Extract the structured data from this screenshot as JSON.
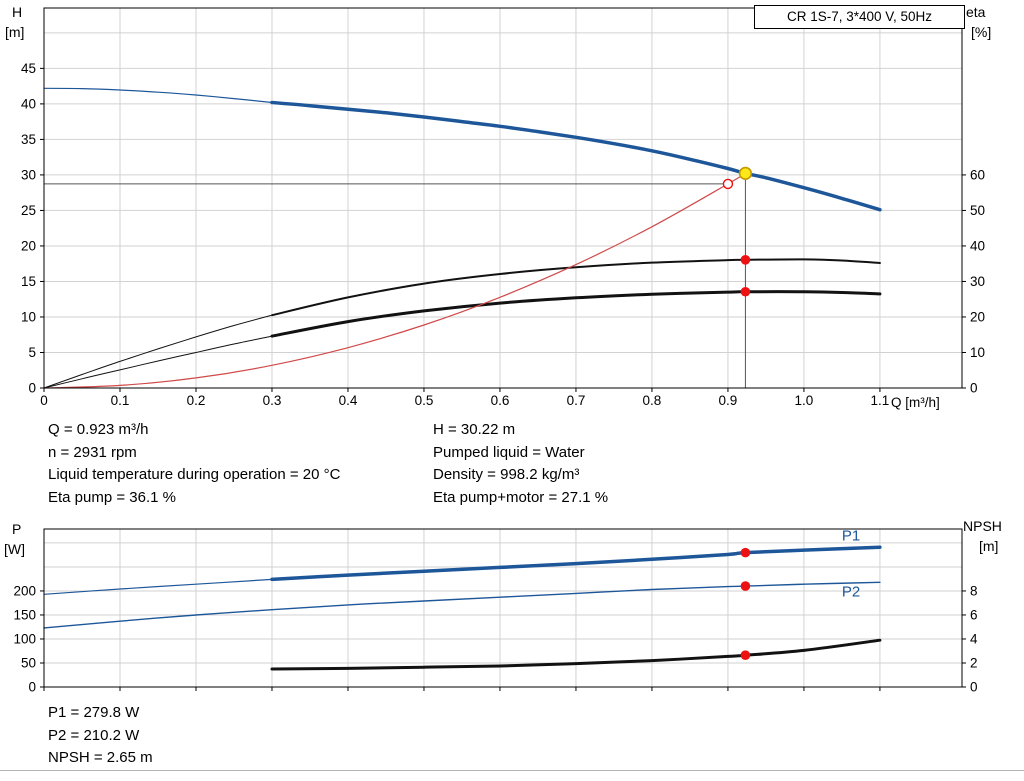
{
  "panel": {
    "title_box": "CR 1S-7, 3*400 V, 50Hz"
  },
  "colors": {
    "curve_blue": "#1e5799",
    "curve_black": "#121212",
    "system_red": "#d04a4a",
    "marker_red": "#ee1111",
    "marker_yellow": "#ffe817",
    "marker_yellow_ring": "#c09b00",
    "guide_gray": "#555555",
    "grid": "#d2d2d2",
    "text": "#000000"
  },
  "annotations": {
    "mid_left": [
      "Q = 0.923 m³/h",
      "n = 2931 rpm",
      "Liquid temperature during operation = 20 °C",
      "Eta pump = 36.1 %"
    ],
    "mid_right": [
      "H = 30.22 m",
      "Pumped liquid = Water",
      "Density = 998.2 kg/m³",
      "Eta pump+motor = 27.1 %"
    ],
    "bottom": [
      "P1 = 279.8 W",
      "P2 = 210.2 W",
      "NPSH = 2.65 m"
    ]
  },
  "chart_data": [
    {
      "id": "qh-eta",
      "type": "line",
      "axes": {
        "x": {
          "label": "Q [m³/h]",
          "min": 0,
          "max": 1.208,
          "ticks": [
            [
              0,
              "0"
            ],
            [
              0.1,
              "0.1"
            ],
            [
              0.2,
              "0.2"
            ],
            [
              0.3,
              "0.3"
            ],
            [
              0.4,
              "0.4"
            ],
            [
              0.5,
              "0.5"
            ],
            [
              0.6,
              "0.6"
            ],
            [
              0.7,
              "0.7"
            ],
            [
              0.8,
              "0.8"
            ],
            [
              0.9,
              "0.9"
            ],
            [
              1.0,
              "1.0"
            ],
            [
              1.1,
              "1.1"
            ]
          ],
          "grid": [
            0.1,
            0.2,
            0.3,
            0.4,
            0.5,
            0.6,
            0.7,
            0.8,
            0.9,
            1.0,
            1.1
          ],
          "show_labels": true
        },
        "left": {
          "label": "H",
          "unit": "[m]",
          "min": 0,
          "max": 53.5,
          "ticks": [
            [
              0,
              "0"
            ],
            [
              5,
              "5"
            ],
            [
              10,
              "10"
            ],
            [
              15,
              "15"
            ],
            [
              20,
              "20"
            ],
            [
              25,
              "25"
            ],
            [
              30,
              "30"
            ],
            [
              35,
              "35"
            ],
            [
              40,
              "40"
            ],
            [
              45,
              "45"
            ]
          ],
          "grid": [
            5,
            10,
            15,
            20,
            25,
            30,
            35,
            40,
            45,
            50
          ]
        },
        "right": {
          "label": "eta",
          "unit": "[%]",
          "min": 0,
          "max": 107,
          "ticks": [
            [
              0,
              "0"
            ],
            [
              10,
              "10"
            ],
            [
              20,
              "20"
            ],
            [
              30,
              "30"
            ],
            [
              40,
              "40"
            ],
            [
              50,
              "50"
            ],
            [
              60,
              "60"
            ]
          ]
        }
      },
      "series": [
        {
          "name": "head-curve-low",
          "axis": "left",
          "color": "curve_blue",
          "width": 1.2,
          "points": [
            [
              0,
              42.2
            ],
            [
              0.05,
              42.15
            ],
            [
              0.1,
              41.95
            ],
            [
              0.15,
              41.65
            ],
            [
              0.2,
              41.25
            ],
            [
              0.25,
              40.75
            ],
            [
              0.3,
              40.2
            ]
          ]
        },
        {
          "name": "head-curve",
          "axis": "left",
          "color": "curve_blue",
          "width": 3.5,
          "points": [
            [
              0.3,
              40.2
            ],
            [
              0.35,
              39.75
            ],
            [
              0.4,
              39.25
            ],
            [
              0.45,
              38.75
            ],
            [
              0.5,
              38.15
            ],
            [
              0.55,
              37.5
            ],
            [
              0.6,
              36.85
            ],
            [
              0.65,
              36.1
            ],
            [
              0.7,
              35.3
            ],
            [
              0.75,
              34.4
            ],
            [
              0.8,
              33.4
            ],
            [
              0.85,
              32.2
            ],
            [
              0.9,
              30.9
            ],
            [
              0.923,
              30.22
            ],
            [
              0.95,
              29.6
            ],
            [
              1.0,
              28.2
            ],
            [
              1.05,
              26.7
            ],
            [
              1.1,
              25.1
            ]
          ]
        },
        {
          "name": "eta-pump-low",
          "axis": "right",
          "color": "curve_black",
          "width": 1,
          "points": [
            [
              0,
              0
            ],
            [
              0.05,
              3.8
            ],
            [
              0.1,
              7.5
            ],
            [
              0.15,
              11.0
            ],
            [
              0.2,
              14.4
            ],
            [
              0.25,
              17.6
            ],
            [
              0.3,
              20.5
            ]
          ]
        },
        {
          "name": "eta-pump",
          "axis": "right",
          "color": "curve_black",
          "width": 2,
          "points": [
            [
              0.3,
              20.5
            ],
            [
              0.4,
              25.5
            ],
            [
              0.5,
              29.4
            ],
            [
              0.6,
              32.1
            ],
            [
              0.7,
              34.0
            ],
            [
              0.8,
              35.3
            ],
            [
              0.9,
              36.0
            ],
            [
              0.923,
              36.1
            ],
            [
              1.0,
              36.2
            ],
            [
              1.05,
              35.9
            ],
            [
              1.1,
              35.2
            ]
          ]
        },
        {
          "name": "eta-pump-motor-low",
          "axis": "right",
          "color": "curve_black",
          "width": 1,
          "points": [
            [
              0,
              0
            ],
            [
              0.05,
              2.6
            ],
            [
              0.1,
              5.1
            ],
            [
              0.15,
              7.6
            ],
            [
              0.2,
              10.0
            ],
            [
              0.25,
              12.4
            ],
            [
              0.3,
              14.6
            ]
          ]
        },
        {
          "name": "eta-pump-motor",
          "axis": "right",
          "color": "curve_black",
          "width": 3,
          "points": [
            [
              0.3,
              14.6
            ],
            [
              0.4,
              18.7
            ],
            [
              0.5,
              21.7
            ],
            [
              0.6,
              23.9
            ],
            [
              0.7,
              25.4
            ],
            [
              0.8,
              26.4
            ],
            [
              0.9,
              27.0
            ],
            [
              0.923,
              27.1
            ],
            [
              1.0,
              27.1
            ],
            [
              1.05,
              26.9
            ],
            [
              1.1,
              26.5
            ]
          ]
        },
        {
          "name": "system-curve",
          "axis": "left",
          "color": "system_red",
          "width": 1.2,
          "points": [
            [
              0,
              0
            ],
            [
              0.1,
              0.36
            ],
            [
              0.2,
              1.42
            ],
            [
              0.3,
              3.19
            ],
            [
              0.4,
              5.68
            ],
            [
              0.5,
              8.87
            ],
            [
              0.6,
              12.77
            ],
            [
              0.7,
              17.38
            ],
            [
              0.8,
              22.7
            ],
            [
              0.9,
              28.73
            ],
            [
              0.923,
              30.22
            ]
          ]
        }
      ],
      "guides": [
        {
          "type": "v",
          "x": 0.923,
          "from": 0,
          "to": 30.22,
          "axis": "left"
        },
        {
          "type": "h",
          "value": 28.73,
          "from": 0,
          "to": 0.9,
          "axis": "left"
        }
      ],
      "markers": [
        {
          "name": "eta-pump-point",
          "x": 0.923,
          "value": 36.1,
          "axis": "right",
          "r": 4.8,
          "fill": "marker_red"
        },
        {
          "name": "eta-pump-motor-point",
          "x": 0.923,
          "value": 27.1,
          "axis": "right",
          "r": 4.8,
          "fill": "marker_red"
        },
        {
          "name": "requested-duty-point",
          "x": 0.9,
          "value": 28.73,
          "axis": "left",
          "r": 4.5,
          "fill": "#ffffff",
          "stroke": "marker_red",
          "sw": 1.4,
          "click": true
        },
        {
          "name": "operating-point",
          "x": 0.923,
          "value": 30.22,
          "axis": "left",
          "r": 5.8,
          "fill": "marker_yellow",
          "stroke": "marker_yellow_ring",
          "sw": 1.6,
          "click": true
        }
      ],
      "labels": []
    },
    {
      "id": "power-npsh",
      "type": "line",
      "axes": {
        "x": {
          "label": "",
          "min": 0,
          "max": 1.208,
          "ticks": [
            [
              0,
              "0"
            ],
            [
              0.1,
              "0.1"
            ],
            [
              0.2,
              "0.2"
            ],
            [
              0.3,
              "0.3"
            ],
            [
              0.4,
              "0.4"
            ],
            [
              0.5,
              "0.5"
            ],
            [
              0.6,
              "0.6"
            ],
            [
              0.7,
              "0.7"
            ],
            [
              0.8,
              "0.8"
            ],
            [
              0.9,
              "0.9"
            ],
            [
              1.0,
              "1.0"
            ],
            [
              1.1,
              "1.1"
            ]
          ],
          "grid": [
            0.1,
            0.2,
            0.3,
            0.4,
            0.5,
            0.6,
            0.7,
            0.8,
            0.9,
            1.0,
            1.1
          ],
          "show_labels": false
        },
        "left": {
          "label": "P",
          "unit": "[W]",
          "min": 0,
          "max": 329,
          "ticks": [
            [
              0,
              "0"
            ],
            [
              50,
              "50"
            ],
            [
              100,
              "100"
            ],
            [
              150,
              "150"
            ],
            [
              200,
              "200"
            ]
          ],
          "grid": [
            50,
            100,
            150,
            200,
            250,
            300
          ]
        },
        "right": {
          "label": "NPSH",
          "unit": "[m]",
          "min": 0,
          "max": 13.16,
          "ticks": [
            [
              0,
              "0"
            ],
            [
              2,
              "2"
            ],
            [
              4,
              "4"
            ],
            [
              6,
              "6"
            ],
            [
              8,
              "8"
            ]
          ]
        }
      },
      "series": [
        {
          "name": "p1-curve-low",
          "axis": "left",
          "color": "curve_blue",
          "width": 1.2,
          "points": [
            [
              0,
              193
            ],
            [
              0.1,
              204
            ],
            [
              0.2,
              214
            ],
            [
              0.3,
              224
            ]
          ]
        },
        {
          "name": "p1-curve",
          "axis": "left",
          "color": "curve_blue",
          "width": 3.5,
          "points": [
            [
              0.3,
              224
            ],
            [
              0.4,
              233
            ],
            [
              0.5,
              241
            ],
            [
              0.6,
              249
            ],
            [
              0.7,
              257
            ],
            [
              0.8,
              266
            ],
            [
              0.9,
              276
            ],
            [
              0.923,
              279.8
            ],
            [
              1.0,
              285
            ],
            [
              1.1,
              291
            ]
          ]
        },
        {
          "name": "p2-curve",
          "axis": "left",
          "color": "curve_blue",
          "width": 1.4,
          "points": [
            [
              0,
              123
            ],
            [
              0.1,
              137
            ],
            [
              0.2,
              150
            ],
            [
              0.3,
              161
            ],
            [
              0.4,
              171
            ],
            [
              0.5,
              179
            ],
            [
              0.6,
              187
            ],
            [
              0.7,
              195
            ],
            [
              0.8,
              203
            ],
            [
              0.9,
              209
            ],
            [
              0.923,
              210.2
            ],
            [
              1.0,
              214
            ],
            [
              1.1,
              218
            ]
          ]
        },
        {
          "name": "npsh-curve",
          "axis": "right",
          "color": "curve_black",
          "width": 3,
          "points": [
            [
              0.3,
              1.5
            ],
            [
              0.4,
              1.55
            ],
            [
              0.5,
              1.65
            ],
            [
              0.6,
              1.75
            ],
            [
              0.7,
              1.95
            ],
            [
              0.8,
              2.2
            ],
            [
              0.9,
              2.55
            ],
            [
              0.923,
              2.65
            ],
            [
              1.0,
              3.05
            ],
            [
              1.1,
              3.9
            ]
          ]
        }
      ],
      "guides": [],
      "markers": [
        {
          "name": "p1-point",
          "x": 0.923,
          "value": 279.8,
          "axis": "left",
          "r": 4.8,
          "fill": "marker_red"
        },
        {
          "name": "p2-point",
          "x": 0.923,
          "value": 210.2,
          "axis": "left",
          "r": 4.8,
          "fill": "marker_red"
        },
        {
          "name": "npsh-point",
          "x": 0.923,
          "value": 2.65,
          "axis": "right",
          "r": 4.8,
          "fill": "marker_red"
        }
      ],
      "labels": [
        {
          "text": "P1",
          "x": 1.05,
          "value": 305,
          "axis": "left",
          "color": "curve_blue"
        },
        {
          "text": "P2",
          "x": 1.05,
          "value": 188,
          "axis": "left",
          "color": "curve_blue"
        }
      ]
    }
  ]
}
